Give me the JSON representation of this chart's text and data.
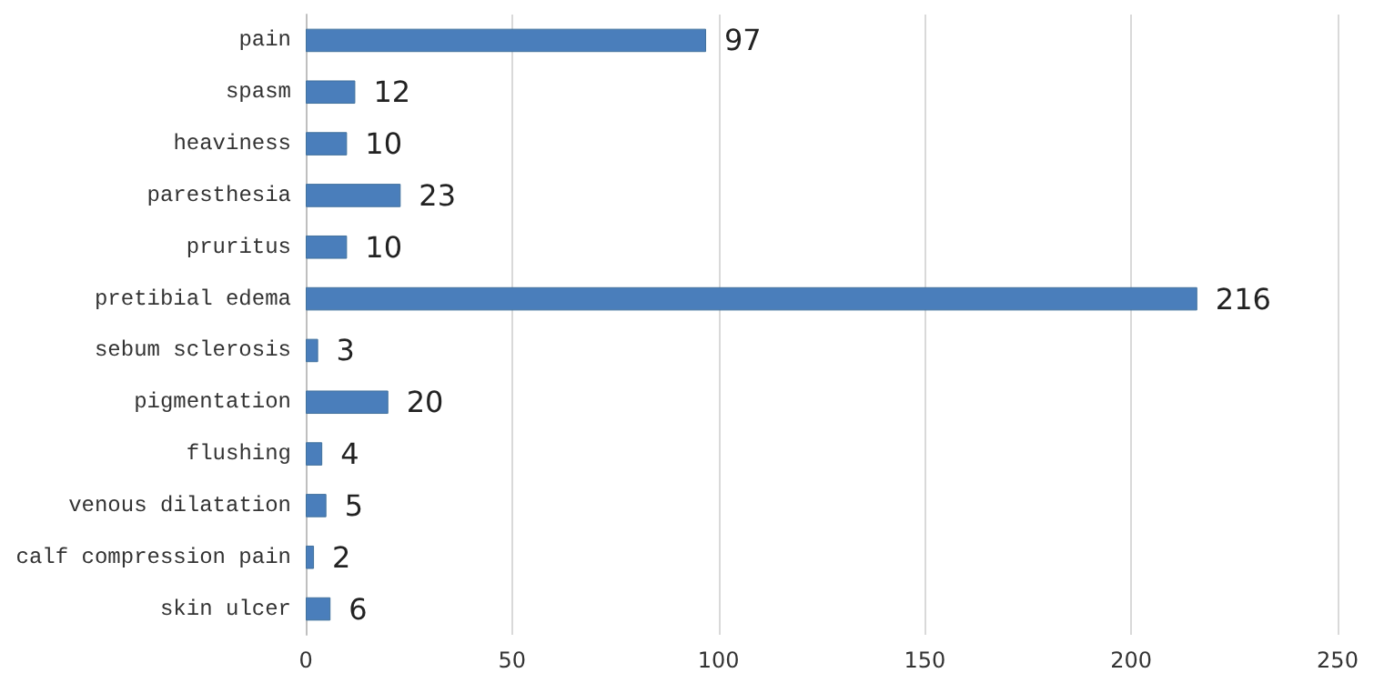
{
  "chart_data": {
    "type": "bar",
    "orientation": "horizontal",
    "categories": [
      "pain",
      "spasm",
      "heaviness",
      "paresthesia",
      "pruritus",
      "pretibial edema",
      "sebum sclerosis",
      "pigmentation",
      "flushing",
      "venous dilatation",
      "calf compression pain",
      "skin ulcer"
    ],
    "values": [
      97,
      12,
      10,
      23,
      10,
      216,
      3,
      20,
      4,
      5,
      2,
      6
    ],
    "color": "#4a7ebb",
    "data_labels": true,
    "xlim": [
      0,
      250
    ],
    "xticks": [
      0,
      50,
      100,
      150,
      200,
      250
    ],
    "grid": "x"
  }
}
